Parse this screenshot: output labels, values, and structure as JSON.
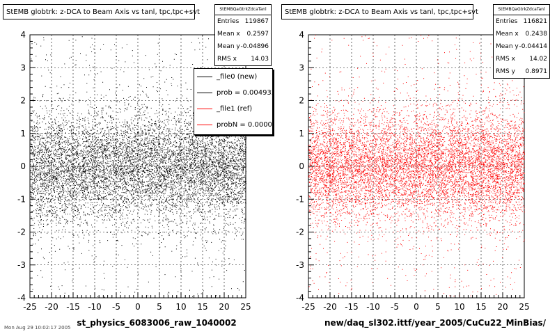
{
  "footer_note": "Mon Aug 29 10:02:17 2005",
  "chart_data": [
    {
      "type": "scatter",
      "title": "StEMB globtrk: z-DCA to Beam Axis vs tanl, tpc,tpc+svt",
      "xlabel": "st_physics_6083006_raw_1040002",
      "ylabel": "",
      "xlim": [
        -25,
        25
      ],
      "ylim": [
        -4,
        4
      ],
      "xticks": [
        "-25",
        "-20",
        "-15",
        "-10",
        "-5",
        "0",
        "5",
        "10",
        "15",
        "20",
        "25"
      ],
      "yticks": [
        "-4",
        "-3",
        "-2",
        "-1",
        "0",
        "1",
        "2",
        "3",
        "4"
      ],
      "grid": true,
      "marker_color": "#000000",
      "legend_placement": "top-right",
      "stats": {
        "name": "StEMBQaGtrkZdcaTanl",
        "rows": [
          {
            "label": "Entries",
            "value": "119867"
          },
          {
            "label": "Mean x",
            "value": "0.2597"
          },
          {
            "label": "Mean y",
            "value": "-0.04896"
          },
          {
            "label": "RMS x",
            "value": "14.03"
          }
        ]
      },
      "legend": [
        {
          "label": "_file0 (new)",
          "color": "#000000"
        },
        {
          "label": "prob = 0.004933",
          "color": "#000000"
        },
        {
          "label": "_file1 (ref)",
          "color": "#ff0000"
        },
        {
          "label": "probN = 0.000000",
          "color": "#ff0000"
        }
      ]
    },
    {
      "type": "scatter",
      "title": "StEMB globtrk: z-DCA to Beam Axis vs tanl, tpc,tpc+svt",
      "xlabel": "new/daq_sl302.ittf/year_2005/CuCu22_MinBias/",
      "ylabel": "",
      "xlim": [
        -25,
        25
      ],
      "ylim": [
        -4,
        4
      ],
      "xticks": [
        "-25",
        "-20",
        "-15",
        "-10",
        "-5",
        "0",
        "5",
        "10",
        "15",
        "20",
        "25"
      ],
      "yticks": [
        "-4",
        "-3",
        "-2",
        "-1",
        "0",
        "1",
        "2",
        "3",
        "4"
      ],
      "grid": true,
      "marker_color": "#ff0000",
      "stats": {
        "name": "StEMBQaGtrkZdcaTanl",
        "rows": [
          {
            "label": "Entries",
            "value": "116821"
          },
          {
            "label": "Mean x",
            "value": "0.2438"
          },
          {
            "label": "Mean y",
            "value": "-0.04414"
          },
          {
            "label": "RMS x",
            "value": "14.02"
          },
          {
            "label": "RMS y",
            "value": "0.8971"
          }
        ]
      }
    }
  ]
}
